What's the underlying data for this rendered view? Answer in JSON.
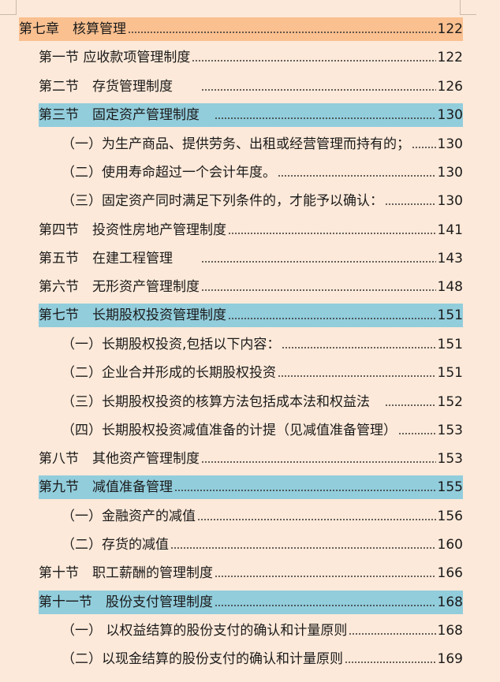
{
  "toc": {
    "entries": [
      {
        "text": "第七章　核算管理",
        "page": "122"
      },
      {
        "text": "第一节 应收款项管理制度",
        "page": "122"
      },
      {
        "text": "第二节　存货管理制度　　",
        "page": "126"
      },
      {
        "text": "第三节　固定资产管理制度　",
        "page": "130"
      },
      {
        "text": "（一）为生产商品、提供劳务、出租或经营管理而持有的；",
        "page": "130"
      },
      {
        "text": "（二）使用寿命超过一个会计年度。",
        "page": "130"
      },
      {
        "text": "（三）固定资产同时满足下列条件的，才能予以确认：",
        "page": "130"
      },
      {
        "text": "第四节　投资性房地产管理制度",
        "page": "141"
      },
      {
        "text": "第五节　在建工程管理　　",
        "page": "143"
      },
      {
        "text": "第六节　无形资产管理制度",
        "page": "148"
      },
      {
        "text": "第七节　长期股权投资管理制度",
        "page": "151"
      },
      {
        "text": "（一）长期股权投资,包括以下内容：",
        "page": "151"
      },
      {
        "text": "（二）企业合并形成的长期股权投资",
        "page": "151"
      },
      {
        "text": "（三）长期股权投资的核算方法包括成本法和权益法　",
        "page": "152"
      },
      {
        "text": "（四）长期股权投资减值准备的计提（见减值准备管理）",
        "page": "153"
      },
      {
        "text": "第八节　其他资产管理制度",
        "page": "153"
      },
      {
        "text": "第九节　减值准备管理",
        "page": "155"
      },
      {
        "text": "（一）金融资产的减值",
        "page": "156"
      },
      {
        "text": "（二）存货的减值",
        "page": "160"
      },
      {
        "text": "第十节　职工薪酬的管理制度",
        "page": "166"
      },
      {
        "text": "第十一节　股份支付管理制度",
        "page": "168"
      },
      {
        "text": "（一） 以权益结算的股份支付的确认和计量原则",
        "page": "168"
      },
      {
        "text": "（二）以现金结算的股份支付的确认和计量原则",
        "page": "169"
      }
    ]
  }
}
